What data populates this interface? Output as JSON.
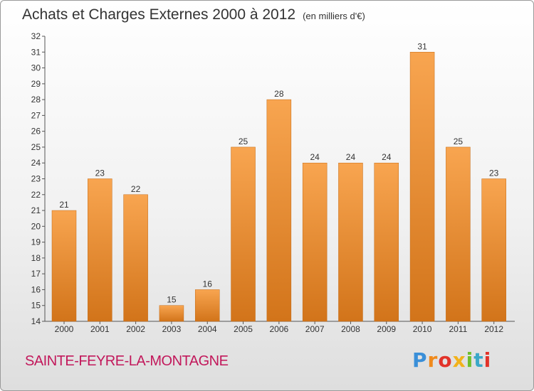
{
  "header": {
    "title": "Achats et Charges Externes 2000 à 2012",
    "unit": "(en milliers d'€)"
  },
  "footer": {
    "town": "SAINTE-FEYRE-LA-MONTAGNE",
    "logo_text": "Proxiti"
  },
  "colors": {
    "bar_light": "#f8a550",
    "bar_dark": "#d2741a",
    "town": "#c2185b"
  },
  "chart_data": {
    "type": "bar",
    "title": "Achats et Charges Externes 2000 à 2012",
    "subtitle": "(en milliers d'€)",
    "categories": [
      "2000",
      "2001",
      "2002",
      "2003",
      "2004",
      "2005",
      "2006",
      "2007",
      "2008",
      "2009",
      "2010",
      "2011",
      "2012"
    ],
    "values": [
      21,
      23,
      22,
      15,
      16,
      25,
      28,
      24,
      24,
      24,
      31,
      25,
      23
    ],
    "ylim": [
      14,
      32
    ],
    "yticks": [
      14,
      15,
      16,
      17,
      18,
      19,
      20,
      21,
      22,
      23,
      24,
      25,
      26,
      27,
      28,
      29,
      30,
      31,
      32
    ],
    "grid": false,
    "legend": "none"
  }
}
